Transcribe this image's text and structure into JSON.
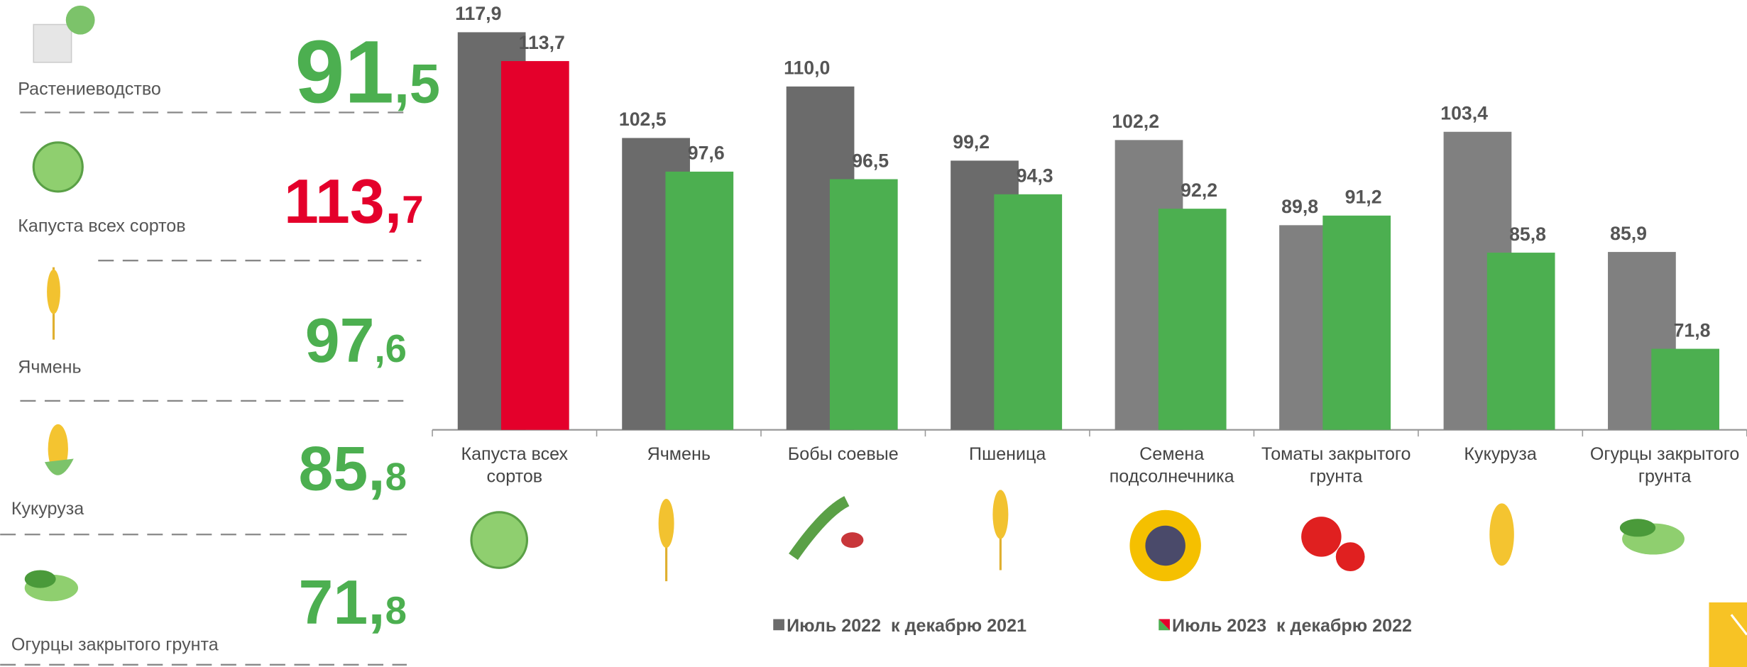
{
  "panel": {
    "items": [
      {
        "label": "Растениеводство",
        "big": "91",
        "small": ",5",
        "color": "#4caf50"
      },
      {
        "label": "Капуста всех сортов",
        "big": "113,",
        "small": "7",
        "color": "#e4002b"
      },
      {
        "label": "Ячмень",
        "big": "97",
        "small": ",6",
        "color": "#4caf50"
      },
      {
        "label": "Кукуруза",
        "big": "85,",
        "small": "8",
        "color": "#4caf50"
      },
      {
        "label": "Огурцы закрытого грунта",
        "big": "71,",
        "small": "8",
        "color": "#4caf50"
      }
    ]
  },
  "chart_data": {
    "type": "bar",
    "categories": [
      "Капуста всех сортов",
      "Ячмень",
      "Бобы соевые",
      "Пшеница",
      "Семена подсолнечника",
      "Томаты закрытого грунта",
      "Кукуруза",
      "Огурцы закрытого грунта"
    ],
    "series": [
      {
        "name": "Июль 2022  к декабрю 2021",
        "color": "#6b6b6b",
        "colors": [
          "#6b6b6b",
          "#6b6b6b",
          "#6b6b6b",
          "#6b6b6b",
          "#808080",
          "#808080",
          "#808080",
          "#808080"
        ],
        "values": [
          117.9,
          102.5,
          110.0,
          99.2,
          102.2,
          89.8,
          103.4,
          85.9
        ],
        "value_labels": [
          "117,9",
          "102,5",
          "110,0",
          "99,2",
          "102,2",
          "89,8",
          "103,4",
          "85,9"
        ]
      },
      {
        "name": "Июль 2023  к декабрю 2022",
        "color": "#4caf50",
        "colors": [
          "#e4002b",
          "#4caf50",
          "#4caf50",
          "#4caf50",
          "#4caf50",
          "#4caf50",
          "#4caf50",
          "#4caf50"
        ],
        "values": [
          113.7,
          97.6,
          96.5,
          94.3,
          92.2,
          91.2,
          85.8,
          71.8
        ],
        "value_labels": [
          "113,7",
          "97,6",
          "96,5",
          "94,3",
          "92,2",
          "91,2",
          "85,8",
          "71,8"
        ]
      }
    ],
    "ylim": [
      60,
      120
    ]
  }
}
